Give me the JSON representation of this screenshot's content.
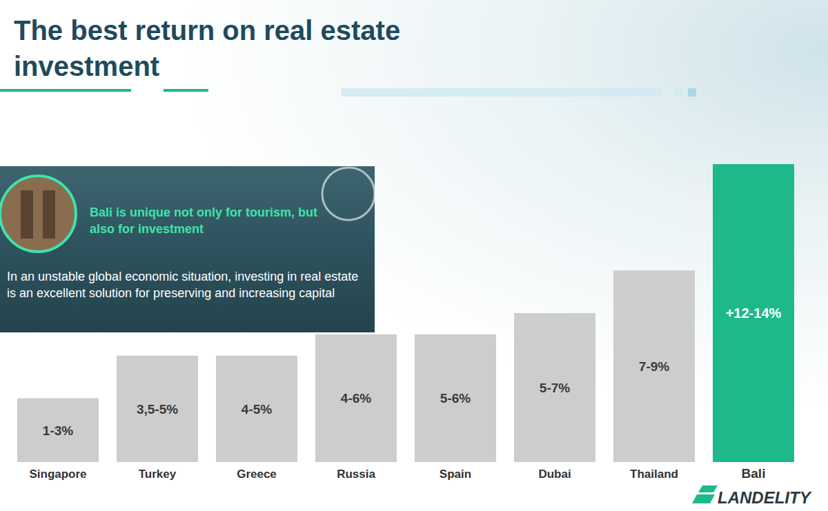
{
  "chart_data": {
    "type": "bar",
    "title": "The best return on real estate investment",
    "categories": [
      "Singapore",
      "Turkey",
      "Greece",
      "Russia",
      "Spain",
      "Dubai",
      "Thailand",
      "Bali"
    ],
    "values": [
      3,
      5,
      5,
      6,
      6,
      7,
      9,
      14
    ],
    "value_labels": [
      "1-3%",
      "3,5-5%",
      "4-5%",
      "4-6%",
      "5-6%",
      "5-7%",
      "7-9%",
      "+12-14%"
    ],
    "colors": [
      "#cdcdcd",
      "#cdcdcd",
      "#cdcdcd",
      "#cdcdcd",
      "#cdcdcd",
      "#cdcdcd",
      "#cdcdcd",
      "#1db98b"
    ],
    "ylim": [
      0,
      14
    ],
    "data_labels": true,
    "tick_labels": "x",
    "grid": false
  },
  "panel": {
    "heading": "Bali is unique not only for tourism, but also for investment",
    "text": "In an unstable global economic situation, investing in real estate is an excellent solution for preserving and increasing capital"
  },
  "logo": {
    "text": "LANDELITY"
  }
}
